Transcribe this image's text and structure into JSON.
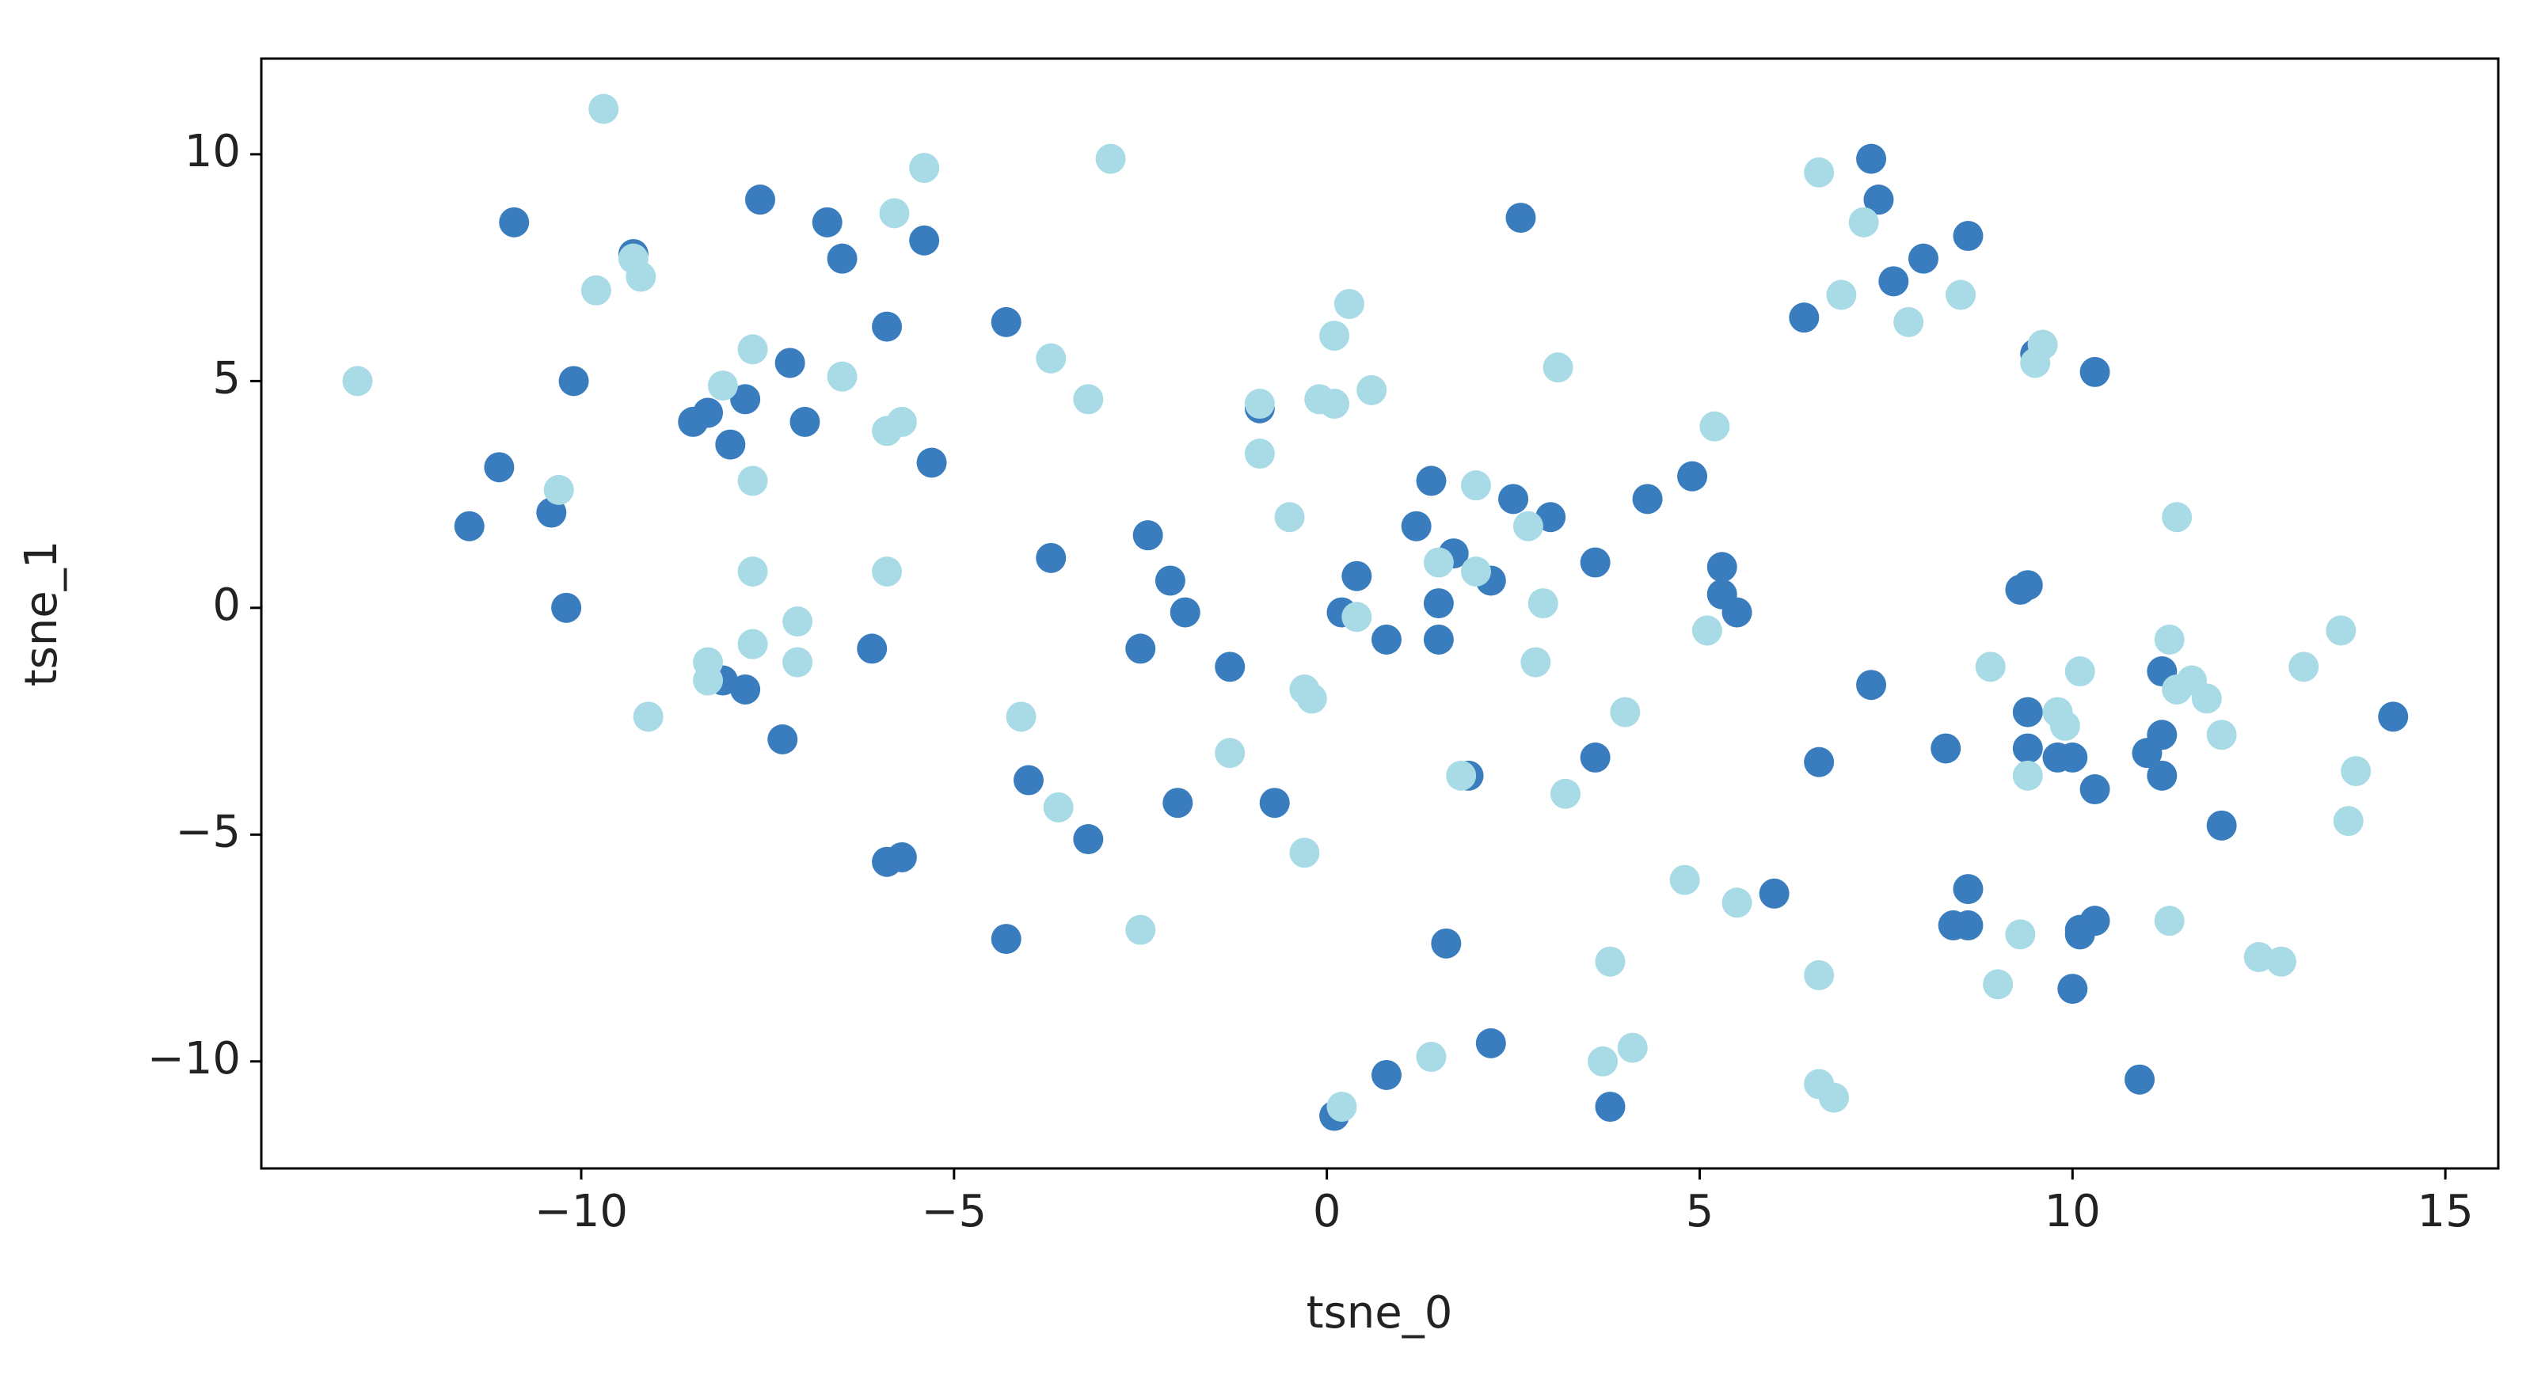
{
  "chart_data": {
    "type": "scatter",
    "xlabel": "tsne_0",
    "ylabel": "tsne_1",
    "xlim": [
      -14.29,
      15.71
    ],
    "ylim": [
      -12.36,
      12.11
    ],
    "xticks": [
      {
        "value": -10,
        "label": "−10"
      },
      {
        "value": -5,
        "label": "−5"
      },
      0,
      5,
      10,
      15
    ],
    "yticks": [
      {
        "value": -10,
        "label": "−10"
      },
      {
        "value": -5,
        "label": "−5"
      },
      0,
      5,
      10
    ],
    "grid": false,
    "series": [
      {
        "color": "#3a7dbf",
        "x": [
          -10.9,
          -7.6,
          -9.3,
          -6.7,
          -6.5,
          -5.4,
          -4.3,
          -5.9,
          -7.2,
          -10.1,
          -8.5,
          -8.3,
          -7.8,
          -8.0,
          -7.0,
          -5.3,
          -11.1,
          -10.4,
          -11.5,
          -10.2,
          -6.1,
          -8.1,
          -7.8,
          -7.3,
          -5.9,
          -5.7,
          -4.0,
          -3.7,
          -2.4,
          -2.1,
          -1.9,
          -2.5,
          -1.3,
          -2.0,
          -0.7,
          -3.2,
          -4.3,
          -0.9,
          1.4,
          2.5,
          3.0,
          1.2,
          1.7,
          2.2,
          0.4,
          0.2,
          1.5,
          0.8,
          1.5,
          3.6,
          4.3,
          4.9,
          5.3,
          5.3,
          5.5,
          2.6,
          1.9,
          3.6,
          1.6,
          2.2,
          0.8,
          0.1,
          3.8,
          6.0,
          6.6,
          7.3,
          6.4,
          7.3,
          7.4,
          7.6,
          8.0,
          8.6,
          9.5,
          10.3,
          9.3,
          9.4,
          9.4,
          9.4,
          9.8,
          10.0,
          10.3,
          8.3,
          11.2,
          11.2,
          11.0,
          11.2,
          12.0,
          14.3,
          8.6,
          8.4,
          8.6,
          10.1,
          10.3,
          10.1,
          10.0,
          10.9
        ],
        "y": [
          8.5,
          9.0,
          7.8,
          8.5,
          7.7,
          8.1,
          6.3,
          6.2,
          5.4,
          5.0,
          4.1,
          4.3,
          4.6,
          3.6,
          4.1,
          3.2,
          3.1,
          2.1,
          1.8,
          0.0,
          -0.9,
          -1.6,
          -1.8,
          -2.9,
          -5.6,
          -5.5,
          -3.8,
          1.1,
          1.6,
          0.6,
          -0.1,
          -0.9,
          -1.3,
          -4.3,
          -4.3,
          -5.1,
          -7.3,
          4.4,
          2.8,
          2.4,
          2.0,
          1.8,
          1.2,
          0.6,
          0.7,
          -0.1,
          0.1,
          -0.7,
          -0.7,
          1.0,
          2.4,
          2.9,
          0.9,
          0.3,
          -0.1,
          8.6,
          -3.7,
          -3.3,
          -7.4,
          -9.6,
          -10.3,
          -11.2,
          -11.0,
          -6.3,
          -3.4,
          -1.7,
          6.4,
          9.9,
          9.0,
          7.2,
          7.7,
          8.2,
          5.6,
          5.2,
          0.4,
          0.5,
          -2.3,
          -3.1,
          -3.3,
          -3.3,
          -4.0,
          -3.1,
          -1.4,
          -2.8,
          -3.2,
          -3.7,
          -4.8,
          -2.4,
          -6.2,
          -7.0,
          -7.0,
          -7.1,
          -6.9,
          -7.2,
          -8.4,
          -10.4
        ]
      },
      {
        "color": "#a8dbe6",
        "x": [
          -9.7,
          -13.0,
          -9.8,
          -9.2,
          -9.3,
          -7.7,
          -8.1,
          -7.7,
          -10.3,
          -7.7,
          -7.7,
          -7.1,
          -7.1,
          -8.3,
          -8.3,
          -9.1,
          -5.8,
          -5.4,
          -2.9,
          -3.7,
          -3.2,
          -6.5,
          -5.9,
          -5.7,
          -5.9,
          -4.1,
          -3.6,
          -2.5,
          -1.3,
          -0.9,
          -0.5,
          -0.3,
          -0.2,
          -0.3,
          0.3,
          0.1,
          -0.1,
          0.1,
          0.6,
          -0.9,
          3.1,
          2.0,
          2.7,
          1.5,
          2.0,
          0.4,
          2.9,
          2.8,
          1.8,
          3.2,
          4.0,
          3.8,
          4.1,
          3.7,
          1.4,
          0.2,
          4.8,
          5.5,
          5.1,
          5.2,
          6.6,
          7.2,
          6.9,
          7.8,
          8.5,
          9.5,
          9.6,
          6.6,
          6.6,
          6.8,
          8.9,
          9.0,
          9.3,
          10.1,
          9.8,
          9.9,
          9.4,
          11.3,
          11.4,
          11.4,
          11.6,
          11.8,
          12.0,
          11.3,
          12.5,
          12.8,
          13.1,
          13.6,
          13.8,
          13.7
        ],
        "y": [
          11.0,
          5.0,
          7.0,
          7.3,
          7.7,
          5.7,
          4.9,
          2.8,
          2.6,
          0.8,
          -0.8,
          -0.3,
          -1.2,
          -1.2,
          -1.6,
          -2.4,
          8.7,
          9.7,
          9.9,
          5.5,
          4.6,
          5.1,
          3.9,
          4.1,
          0.8,
          -2.4,
          -4.4,
          -7.1,
          -3.2,
          3.4,
          2.0,
          -1.8,
          -2.0,
          -5.4,
          6.7,
          6.0,
          4.6,
          4.5,
          4.8,
          4.5,
          5.3,
          2.7,
          1.8,
          1.0,
          0.8,
          -0.2,
          0.1,
          -1.2,
          -3.7,
          -4.1,
          -2.3,
          -7.8,
          -9.7,
          -10.0,
          -9.9,
          -11.0,
          -6.0,
          -6.5,
          -0.5,
          4.0,
          9.6,
          8.5,
          6.9,
          6.3,
          6.9,
          5.4,
          5.8,
          -8.1,
          -10.5,
          -10.8,
          -1.3,
          -8.3,
          -7.2,
          -1.4,
          -2.3,
          -2.6,
          -3.7,
          -0.7,
          2.0,
          -1.8,
          -1.6,
          -2.0,
          -2.8,
          -6.9,
          -7.7,
          -7.8,
          -1.3,
          -0.5,
          -3.6,
          -4.7
        ]
      }
    ]
  }
}
